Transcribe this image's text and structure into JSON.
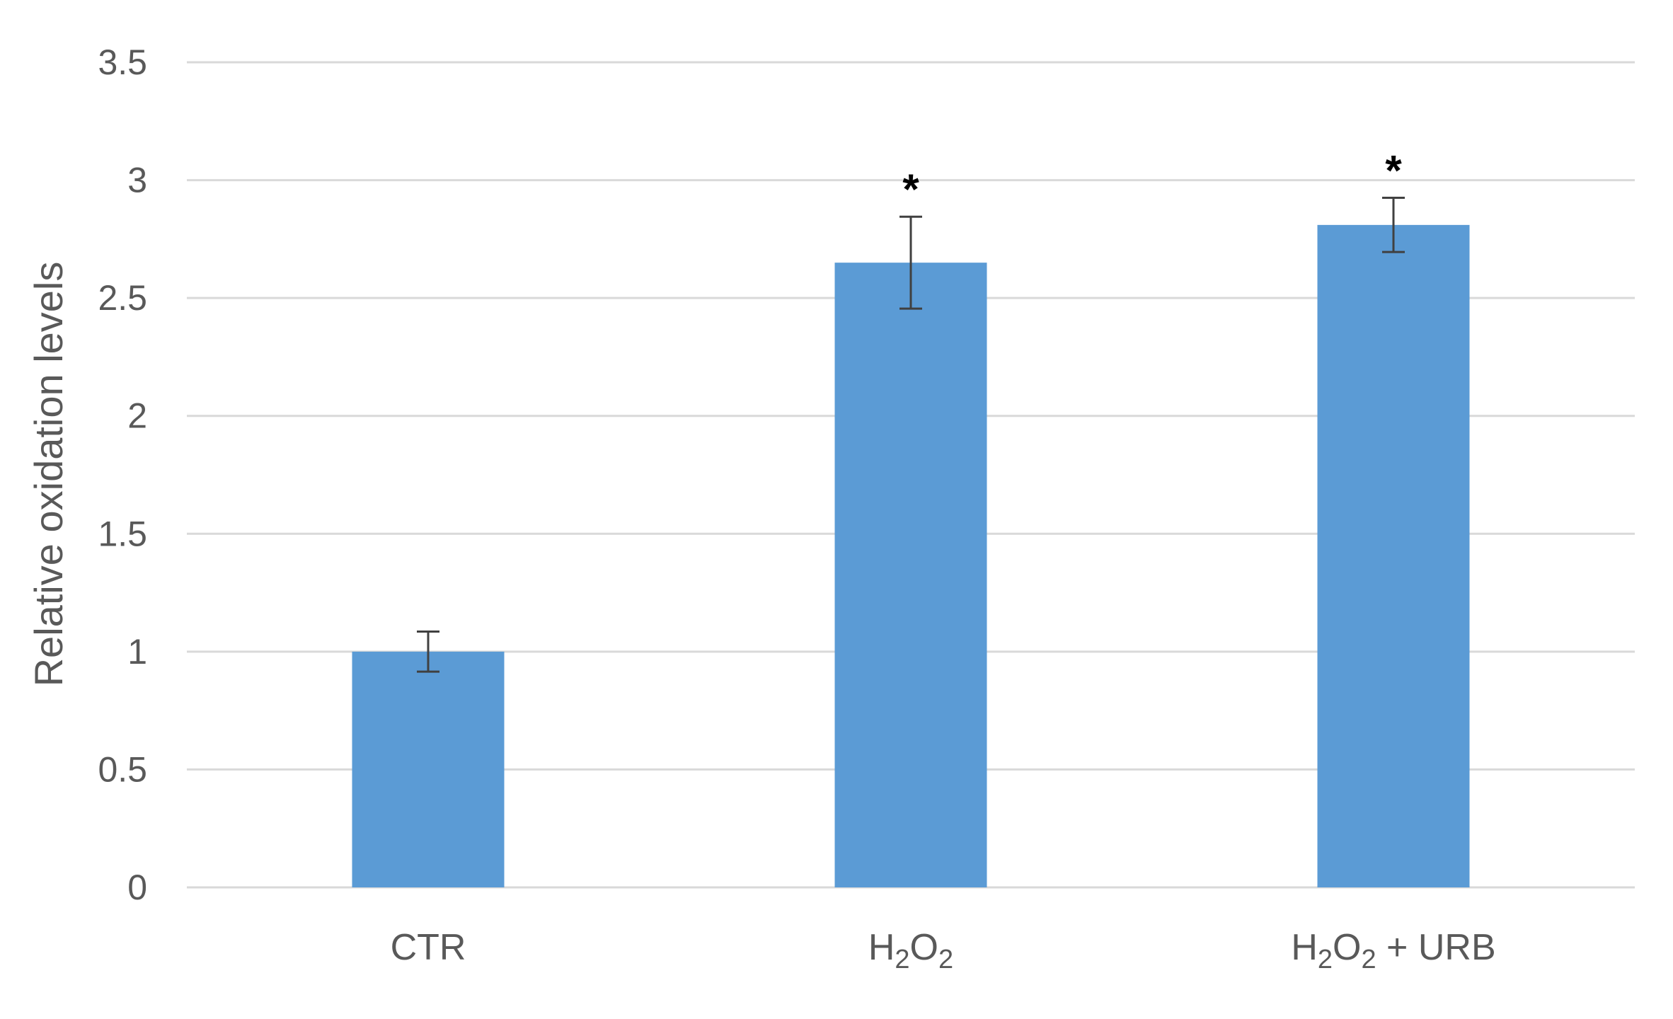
{
  "chart_data": {
    "type": "bar",
    "title": "",
    "xlabel": "",
    "ylabel": "Relative oxidation levels",
    "ylim": [
      0,
      3.5
    ],
    "yticks": [
      "0",
      "0.5",
      "1",
      "1.5",
      "2",
      "2.5",
      "3",
      "3.5"
    ],
    "grid": true,
    "legend": "none",
    "bar_color": "#5b9bd5",
    "categories": [
      {
        "base": "CTR",
        "sub1": "",
        "mid": "",
        "sub2": "",
        "tail": ""
      },
      {
        "base": "H",
        "sub1": "2",
        "mid": "O",
        "sub2": "2",
        "tail": ""
      },
      {
        "base": "H",
        "sub1": "2",
        "mid": "O",
        "sub2": "2",
        "tail": " + URB"
      }
    ],
    "values": [
      1.0,
      2.65,
      2.81
    ],
    "error": [
      0.085,
      0.195,
      0.115
    ],
    "annotations": [
      "",
      "*",
      "*"
    ]
  }
}
